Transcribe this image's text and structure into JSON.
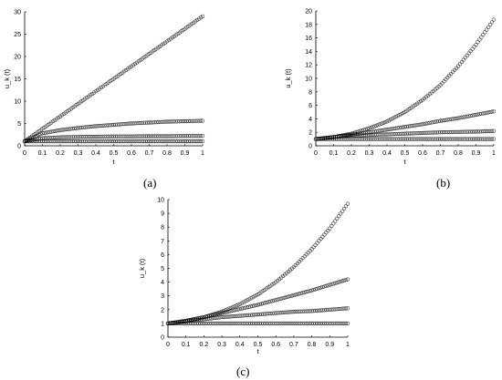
{
  "chart_data": [
    {
      "type": "scatter",
      "panel_label": "(a)",
      "xlabel": "t",
      "ylabel": "u_k (t)",
      "xlim": [
        0,
        1
      ],
      "ylim": [
        0,
        30
      ],
      "x_ticks": [
        "0",
        "0.1",
        "0.2",
        "0.3",
        "0.4",
        "0.5",
        "0.6",
        "0.7",
        "0.8",
        "0.9",
        "1"
      ],
      "y_ticks": [
        "0",
        "5",
        "10",
        "15",
        "20",
        "25",
        "30"
      ],
      "marker": "open-circle",
      "series": [
        {
          "x": [
            0,
            0.1,
            0.2,
            0.3,
            0.4,
            0.5,
            0.6,
            0.7,
            0.8,
            0.9,
            1.0
          ],
          "y": [
            1.0,
            3.8,
            6.6,
            9.4,
            12.2,
            15.0,
            17.8,
            20.6,
            23.4,
            26.2,
            29.0
          ]
        },
        {
          "x": [
            0,
            0.1,
            0.2,
            0.3,
            0.4,
            0.5,
            0.6,
            0.7,
            0.8,
            0.9,
            1.0
          ],
          "y": [
            1.0,
            2.8,
            3.5,
            4.0,
            4.4,
            4.7,
            5.0,
            5.2,
            5.4,
            5.5,
            5.6
          ]
        },
        {
          "x": [
            0,
            0.1,
            0.2,
            0.3,
            0.4,
            0.5,
            0.6,
            0.7,
            0.8,
            0.9,
            1.0
          ],
          "y": [
            1.0,
            1.7,
            1.9,
            2.0,
            2.05,
            2.1,
            2.1,
            2.15,
            2.15,
            2.2,
            2.2
          ]
        },
        {
          "x": [
            0,
            0.1,
            0.2,
            0.3,
            0.4,
            0.5,
            0.6,
            0.7,
            0.8,
            0.9,
            1.0
          ],
          "y": [
            1.0,
            1.0,
            1.0,
            1.0,
            1.0,
            1.0,
            1.0,
            1.0,
            1.0,
            1.0,
            1.0
          ]
        }
      ]
    },
    {
      "type": "scatter",
      "panel_label": "(b)",
      "xlabel": "t",
      "ylabel": "u_k (t)",
      "xlim": [
        0,
        1
      ],
      "ylim": [
        0,
        20
      ],
      "x_ticks": [
        "0",
        "0.1",
        "0.2",
        "0.3",
        "0.4",
        "0.5",
        "0.6",
        "0.7",
        "0.8",
        "0.9",
        "1"
      ],
      "y_ticks": [
        "0",
        "2",
        "4",
        "6",
        "8",
        "10",
        "12",
        "14",
        "16",
        "18",
        "20"
      ],
      "marker": "open-circle",
      "series": [
        {
          "x": [
            0,
            0.1,
            0.2,
            0.3,
            0.4,
            0.5,
            0.6,
            0.7,
            0.8,
            0.9,
            1.0
          ],
          "y": [
            1.0,
            1.3,
            1.8,
            2.6,
            3.6,
            5.0,
            6.8,
            9.0,
            11.8,
            15.0,
            18.7
          ]
        },
        {
          "x": [
            0,
            0.1,
            0.2,
            0.3,
            0.4,
            0.5,
            0.6,
            0.7,
            0.8,
            0.9,
            1.0
          ],
          "y": [
            1.0,
            1.3,
            1.65,
            2.0,
            2.4,
            2.8,
            3.2,
            3.7,
            4.1,
            4.6,
            5.1
          ]
        },
        {
          "x": [
            0,
            0.1,
            0.2,
            0.3,
            0.4,
            0.5,
            0.6,
            0.7,
            0.8,
            0.9,
            1.0
          ],
          "y": [
            1.0,
            1.3,
            1.5,
            1.6,
            1.7,
            1.8,
            1.9,
            2.0,
            2.05,
            2.1,
            2.2
          ]
        },
        {
          "x": [
            0,
            0.1,
            0.2,
            0.3,
            0.4,
            0.5,
            0.6,
            0.7,
            0.8,
            0.9,
            1.0
          ],
          "y": [
            1.0,
            1.0,
            1.0,
            1.0,
            1.0,
            1.0,
            1.0,
            1.0,
            1.0,
            1.0,
            1.0
          ]
        }
      ]
    },
    {
      "type": "scatter",
      "panel_label": "(c)",
      "xlabel": "t",
      "ylabel": "u_k (t)",
      "xlim": [
        0,
        1
      ],
      "ylim": [
        0,
        10
      ],
      "x_ticks": [
        "0",
        "0.1",
        "0.2",
        "0.3",
        "0.4",
        "0.5",
        "0.6",
        "0.7",
        "0.8",
        "0.9",
        "1"
      ],
      "y_ticks": [
        "0",
        "1",
        "2",
        "3",
        "4",
        "5",
        "6",
        "7",
        "8",
        "9",
        "10"
      ],
      "marker": "open-circle",
      "series": [
        {
          "x": [
            0,
            0.1,
            0.2,
            0.3,
            0.4,
            0.5,
            0.6,
            0.7,
            0.8,
            0.9,
            1.0
          ],
          "y": [
            1.0,
            1.15,
            1.45,
            1.85,
            2.4,
            3.1,
            4.0,
            5.1,
            6.4,
            7.9,
            9.7
          ]
        },
        {
          "x": [
            0,
            0.1,
            0.2,
            0.3,
            0.4,
            0.5,
            0.6,
            0.7,
            0.8,
            0.9,
            1.0
          ],
          "y": [
            1.0,
            1.2,
            1.45,
            1.75,
            2.05,
            2.35,
            2.7,
            3.05,
            3.4,
            3.8,
            4.2
          ]
        },
        {
          "x": [
            0,
            0.1,
            0.2,
            0.3,
            0.4,
            0.5,
            0.6,
            0.7,
            0.8,
            0.9,
            1.0
          ],
          "y": [
            1.0,
            1.15,
            1.3,
            1.45,
            1.55,
            1.65,
            1.75,
            1.85,
            1.9,
            2.0,
            2.1
          ]
        },
        {
          "x": [
            0,
            0.1,
            0.2,
            0.3,
            0.4,
            0.5,
            0.6,
            0.7,
            0.8,
            0.9,
            1.0
          ],
          "y": [
            1.0,
            1.0,
            1.0,
            1.0,
            1.0,
            1.0,
            1.0,
            1.0,
            1.0,
            1.0,
            1.0
          ]
        }
      ]
    }
  ]
}
